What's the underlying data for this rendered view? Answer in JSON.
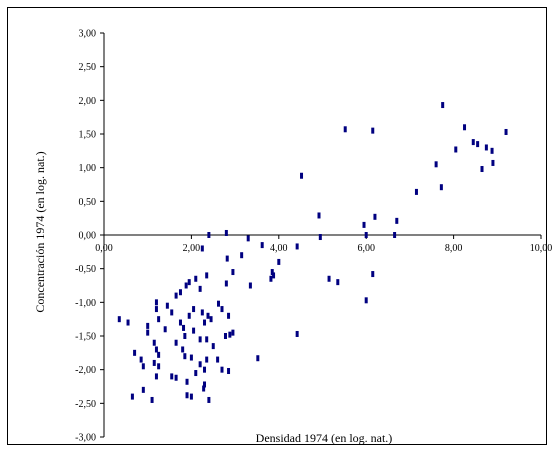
{
  "chart_data": {
    "type": "scatter",
    "title": "",
    "xlabel": "Densidad 1974 (en log. nat.)",
    "ylabel": "Concentración 1974 (en log. nat.)",
    "xlim": [
      0,
      10
    ],
    "ylim": [
      -3,
      3
    ],
    "x_ticks": [
      0,
      2,
      4,
      6,
      8,
      10
    ],
    "y_ticks": [
      3,
      2.5,
      2,
      1.5,
      1,
      0.5,
      0,
      -0.5,
      -1,
      -1.5,
      -2,
      -2.5,
      -3
    ],
    "x_tick_labels": [
      "0,00",
      "2,00",
      "4,00",
      "6,00",
      "8,00",
      "10,00"
    ],
    "y_tick_labels": [
      "3,00",
      "2,50",
      "2,00",
      "1,50",
      "1,00",
      "0,50",
      "0,00",
      "-0,50",
      "-1,00",
      "-1,50",
      "-2,00",
      "-2,50",
      "-3,00"
    ],
    "grid": false,
    "marker_color": "#000080",
    "points": [
      {
        "x": 7.75,
        "y": 1.93
      },
      {
        "x": 5.52,
        "y": 1.57
      },
      {
        "x": 6.15,
        "y": 1.55
      },
      {
        "x": 9.2,
        "y": 1.53
      },
      {
        "x": 8.25,
        "y": 1.6
      },
      {
        "x": 8.45,
        "y": 1.38
      },
      {
        "x": 8.55,
        "y": 1.35
      },
      {
        "x": 8.75,
        "y": 1.3
      },
      {
        "x": 8.88,
        "y": 1.25
      },
      {
        "x": 8.05,
        "y": 1.27
      },
      {
        "x": 7.6,
        "y": 1.05
      },
      {
        "x": 8.65,
        "y": 0.98
      },
      {
        "x": 8.9,
        "y": 1.07
      },
      {
        "x": 4.52,
        "y": 0.88
      },
      {
        "x": 7.72,
        "y": 0.71
      },
      {
        "x": 7.15,
        "y": 0.64
      },
      {
        "x": 4.92,
        "y": 0.29
      },
      {
        "x": 6.2,
        "y": 0.27
      },
      {
        "x": 5.95,
        "y": 0.15
      },
      {
        "x": 6.7,
        "y": 0.21
      },
      {
        "x": 2.8,
        "y": 0.03
      },
      {
        "x": 4.95,
        "y": -0.03
      },
      {
        "x": 6.0,
        "y": 0.0
      },
      {
        "x": 6.65,
        "y": 0.0
      },
      {
        "x": 2.4,
        "y": 0.0
      },
      {
        "x": 3.3,
        "y": -0.05
      },
      {
        "x": 4.42,
        "y": -0.17
      },
      {
        "x": 3.62,
        "y": -0.15
      },
      {
        "x": 2.25,
        "y": -0.2
      },
      {
        "x": 3.15,
        "y": -0.3
      },
      {
        "x": 2.82,
        "y": -0.35
      },
      {
        "x": 4.0,
        "y": -0.4
      },
      {
        "x": 2.95,
        "y": -0.55
      },
      {
        "x": 3.85,
        "y": -0.55
      },
      {
        "x": 3.88,
        "y": -0.6
      },
      {
        "x": 3.82,
        "y": -0.65
      },
      {
        "x": 5.15,
        "y": -0.65
      },
      {
        "x": 5.35,
        "y": -0.7
      },
      {
        "x": 6.15,
        "y": -0.58
      },
      {
        "x": 2.35,
        "y": -0.6
      },
      {
        "x": 2.1,
        "y": -0.65
      },
      {
        "x": 1.95,
        "y": -0.7
      },
      {
        "x": 1.88,
        "y": -0.75
      },
      {
        "x": 2.2,
        "y": -0.8
      },
      {
        "x": 1.75,
        "y": -0.85
      },
      {
        "x": 1.65,
        "y": -0.9
      },
      {
        "x": 3.35,
        "y": -0.75
      },
      {
        "x": 2.8,
        "y": -0.72
      },
      {
        "x": 6.0,
        "y": -0.97
      },
      {
        "x": 1.2,
        "y": -1.0
      },
      {
        "x": 1.45,
        "y": -1.05
      },
      {
        "x": 2.62,
        "y": -1.02
      },
      {
        "x": 2.05,
        "y": -1.1
      },
      {
        "x": 2.25,
        "y": -1.15
      },
      {
        "x": 2.7,
        "y": -1.1
      },
      {
        "x": 2.85,
        "y": -1.2
      },
      {
        "x": 1.2,
        "y": -1.1
      },
      {
        "x": 1.55,
        "y": -1.15
      },
      {
        "x": 1.95,
        "y": -1.2
      },
      {
        "x": 2.45,
        "y": -1.25
      },
      {
        "x": 2.38,
        "y": -1.2
      },
      {
        "x": 0.35,
        "y": -1.25
      },
      {
        "x": 0.55,
        "y": -1.3
      },
      {
        "x": 1.25,
        "y": -1.25
      },
      {
        "x": 1.75,
        "y": -1.3
      },
      {
        "x": 2.3,
        "y": -1.3
      },
      {
        "x": 1.0,
        "y": -1.35
      },
      {
        "x": 1.4,
        "y": -1.4
      },
      {
        "x": 1.82,
        "y": -1.38
      },
      {
        "x": 2.05,
        "y": -1.42
      },
      {
        "x": 2.88,
        "y": -1.48
      },
      {
        "x": 2.95,
        "y": -1.45
      },
      {
        "x": 2.78,
        "y": -1.5
      },
      {
        "x": 1.0,
        "y": -1.45
      },
      {
        "x": 1.85,
        "y": -1.5
      },
      {
        "x": 2.2,
        "y": -1.55
      },
      {
        "x": 2.35,
        "y": -1.55
      },
      {
        "x": 4.42,
        "y": -1.47
      },
      {
        "x": 1.15,
        "y": -1.6
      },
      {
        "x": 1.65,
        "y": -1.6
      },
      {
        "x": 2.5,
        "y": -1.65
      },
      {
        "x": 1.2,
        "y": -1.7
      },
      {
        "x": 1.8,
        "y": -1.7
      },
      {
        "x": 0.7,
        "y": -1.75
      },
      {
        "x": 1.25,
        "y": -1.78
      },
      {
        "x": 1.85,
        "y": -1.8
      },
      {
        "x": 2.0,
        "y": -1.82
      },
      {
        "x": 2.35,
        "y": -1.85
      },
      {
        "x": 3.52,
        "y": -1.83
      },
      {
        "x": 0.85,
        "y": -1.85
      },
      {
        "x": 1.15,
        "y": -1.9
      },
      {
        "x": 2.2,
        "y": -1.92
      },
      {
        "x": 2.6,
        "y": -1.85
      },
      {
        "x": 0.9,
        "y": -1.95
      },
      {
        "x": 1.25,
        "y": -1.95
      },
      {
        "x": 2.7,
        "y": -2.0
      },
      {
        "x": 2.85,
        "y": -2.02
      },
      {
        "x": 2.1,
        "y": -2.05
      },
      {
        "x": 1.2,
        "y": -2.1
      },
      {
        "x": 1.55,
        "y": -2.1
      },
      {
        "x": 1.65,
        "y": -2.12
      },
      {
        "x": 1.9,
        "y": -2.18
      },
      {
        "x": 2.3,
        "y": -2.22
      },
      {
        "x": 2.28,
        "y": -2.28
      },
      {
        "x": 0.9,
        "y": -2.3
      },
      {
        "x": 0.65,
        "y": -2.4
      },
      {
        "x": 1.9,
        "y": -2.38
      },
      {
        "x": 2.0,
        "y": -2.4
      },
      {
        "x": 1.1,
        "y": -2.45
      },
      {
        "x": 2.4,
        "y": -2.45
      },
      {
        "x": 2.3,
        "y": -2.0
      }
    ]
  }
}
